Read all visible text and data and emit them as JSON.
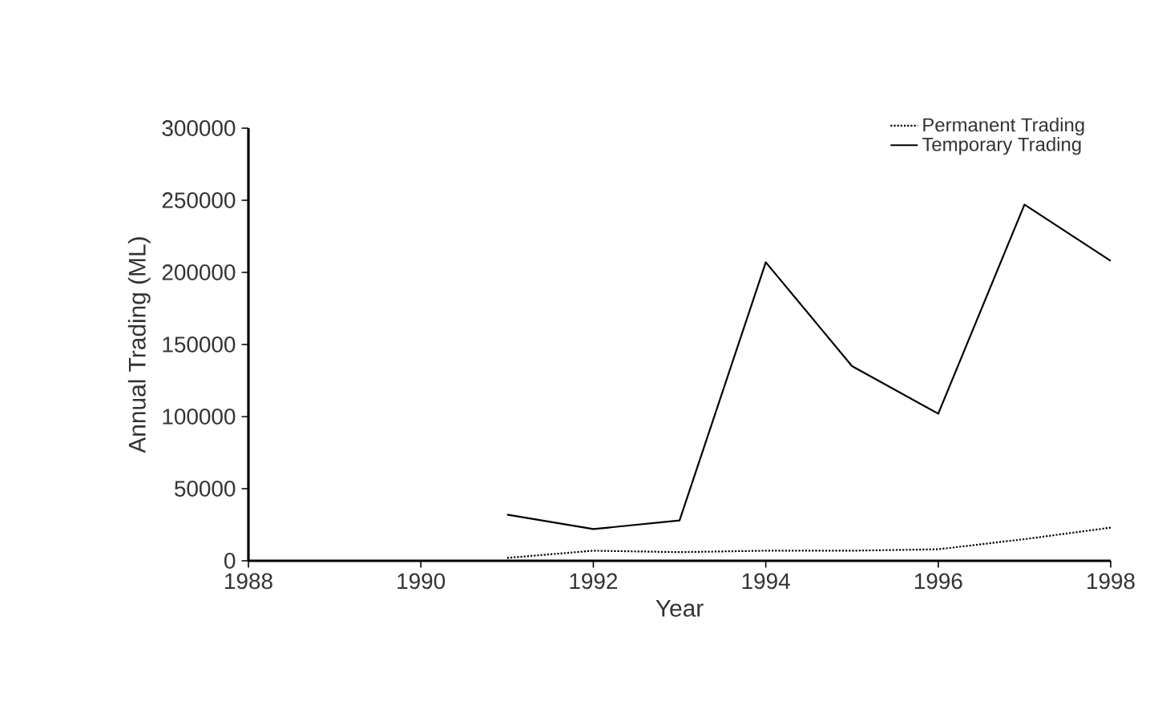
{
  "chart_data": {
    "type": "line",
    "xlabel": "Year",
    "ylabel": "Annual Trading (ML)",
    "x": [
      1991,
      1992,
      1993,
      1994,
      1995,
      1996,
      1997,
      1998
    ],
    "series": [
      {
        "name": "Permanent Trading",
        "color": "#000000",
        "line_style": "dotted",
        "values": [
          2000,
          7000,
          6000,
          7000,
          7000,
          8000,
          15000,
          23000
        ]
      },
      {
        "name": "Temporary Trading",
        "color": "#000000",
        "line_style": "solid",
        "values": [
          32000,
          22000,
          28000,
          207000,
          135000,
          102000,
          247000,
          208000
        ]
      }
    ],
    "xlim": [
      1988,
      1998
    ],
    "xticks": [
      1988,
      1990,
      1992,
      1994,
      1996,
      1998
    ],
    "ylim": [
      0,
      300000
    ],
    "yticks": [
      0,
      50000,
      100000,
      150000,
      200000,
      250000,
      300000
    ],
    "grid": false,
    "legend": "top right",
    "marker": "none"
  }
}
